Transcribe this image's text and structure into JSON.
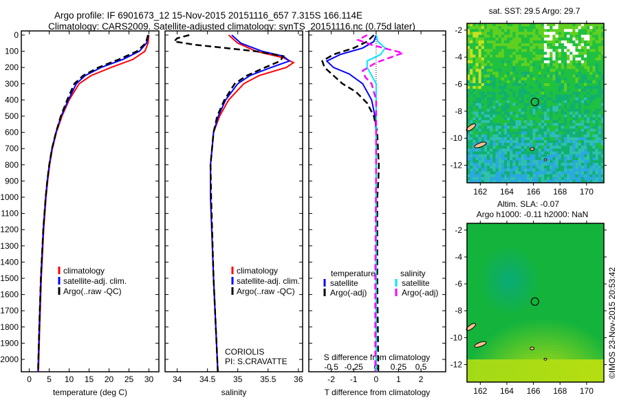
{
  "title_line1": "Argo profile: IF 6901673_12 15-Nov-2015 20151116_657 7.315S 166.114E",
  "title_line2": "Climatology: CARS2009. Satellite-adjusted climatology: synTS_20151116.nc (0.75d later)",
  "colors": {
    "climatology": "#ff0000",
    "satellite": "#0000ff",
    "argo": "#000000",
    "sal_satellite": "#00e5ff",
    "sal_argo": "#ff00ff"
  },
  "chart_data": [
    {
      "type": "line",
      "name": "temperature",
      "xlabel": "temperature (deg C)",
      "ylabel": "depth",
      "xlim": [
        -2,
        32.5
      ],
      "ylim": [
        2075,
        0
      ],
      "xticks": [
        0,
        5,
        10,
        15,
        20,
        25,
        30
      ],
      "yticks": [
        0,
        100,
        200,
        300,
        400,
        500,
        600,
        700,
        800,
        900,
        1000,
        1100,
        1200,
        1300,
        1400,
        1500,
        1600,
        1700,
        1800,
        1900,
        2000
      ],
      "legend": [
        "climatology",
        "satellite-adj. clim.",
        "Argo(..raw -QC)"
      ],
      "series": [
        {
          "name": "climatology",
          "color": "#ff0000",
          "dash": false,
          "depth": [
            0,
            50,
            100,
            150,
            200,
            250,
            300,
            400,
            500,
            600,
            700,
            800,
            900,
            1000,
            1200,
            1500,
            1800,
            2075
          ],
          "values": [
            30.0,
            29.8,
            29.0,
            26.0,
            20.5,
            15.5,
            12.5,
            10.0,
            8.2,
            6.8,
            5.8,
            5.1,
            4.6,
            4.2,
            3.6,
            3.0,
            2.6,
            2.3
          ]
        },
        {
          "name": "satellite-adj. clim.",
          "color": "#0000ff",
          "dash": false,
          "depth": [
            0,
            50,
            100,
            150,
            200,
            250,
            300,
            400,
            500,
            600,
            700,
            800,
            900,
            1000,
            1200,
            1500,
            1800,
            2075
          ],
          "values": [
            29.9,
            29.4,
            27.6,
            23.5,
            18.0,
            14.0,
            11.8,
            9.8,
            8.0,
            6.7,
            5.7,
            5.0,
            4.5,
            4.1,
            3.5,
            2.9,
            2.5,
            2.2
          ]
        },
        {
          "name": "Argo(..raw -QC)",
          "color": "#000000",
          "dash": true,
          "depth": [
            0,
            50,
            100,
            150,
            200,
            250,
            300,
            400,
            500,
            600,
            700,
            800,
            900,
            1000,
            1200,
            1500,
            1800,
            2075
          ],
          "values": [
            29.8,
            29.2,
            27.0,
            22.5,
            17.3,
            13.5,
            11.3,
            9.5,
            7.9,
            6.7,
            5.7,
            5.0,
            4.5,
            4.1,
            3.5,
            2.9,
            2.5,
            2.2
          ]
        }
      ]
    },
    {
      "type": "line",
      "name": "salinity",
      "xlabel": "salinity",
      "xlim": [
        33.8,
        36.07
      ],
      "ylim": [
        2075,
        0
      ],
      "xticks": [
        34,
        34.5,
        35,
        35.5,
        36
      ],
      "legend": [
        "climatology",
        "satellite-adj. clim.",
        "Argo(..raw -QC)"
      ],
      "annotation": [
        "CORIOLIS",
        "PI: S.CRAVATTE"
      ],
      "series": [
        {
          "name": "climatology",
          "color": "#ff0000",
          "dash": false,
          "depth": [
            0,
            50,
            100,
            140,
            170,
            200,
            250,
            300,
            400,
            500,
            600,
            800,
            1000,
            1500,
            2075
          ],
          "values": [
            34.85,
            35.0,
            35.3,
            35.75,
            35.92,
            35.8,
            35.35,
            35.1,
            34.85,
            34.7,
            34.6,
            34.55,
            34.55,
            34.6,
            34.67
          ]
        },
        {
          "name": "satellite-adj. clim.",
          "color": "#0000ff",
          "dash": false,
          "depth": [
            0,
            50,
            100,
            130,
            160,
            200,
            250,
            300,
            400,
            500,
            600,
            800,
            1000,
            1500,
            2075
          ],
          "values": [
            34.9,
            35.05,
            35.4,
            35.75,
            35.85,
            35.55,
            35.2,
            35.0,
            34.8,
            34.68,
            34.6,
            34.55,
            34.55,
            34.6,
            34.67
          ]
        },
        {
          "name": "Argo(..raw -QC)",
          "color": "#000000",
          "dash": true,
          "depth": [
            0,
            20,
            40,
            60,
            100,
            130,
            160,
            200,
            250,
            300,
            400,
            500,
            600,
            800,
            1000,
            1500,
            2075
          ],
          "values": [
            34.2,
            34.0,
            33.95,
            34.3,
            35.3,
            35.75,
            35.7,
            35.45,
            35.15,
            34.95,
            34.78,
            34.66,
            34.6,
            34.55,
            34.56,
            34.6,
            34.67
          ]
        }
      ]
    },
    {
      "type": "line",
      "name": "difference",
      "xlabel": "T difference from climatology",
      "xlabel_top": "S difference from climatology",
      "xlim": [
        -3,
        3.1
      ],
      "ylim": [
        2075,
        0
      ],
      "xticks": [
        -2,
        -1,
        0,
        1,
        2
      ],
      "sticks": [
        -0.5,
        -0.25,
        0,
        0.25,
        0.5
      ],
      "legend_temperature": {
        "heading": "temperature",
        "items": [
          "satellite",
          "Argo(-adj)"
        ]
      },
      "legend_salinity": {
        "heading": "salinity",
        "items": [
          "satellite",
          "Argo(-adj)"
        ]
      },
      "series": [
        {
          "name": "T satellite",
          "axis": "T",
          "color": "#0000ff",
          "dash": false,
          "depth": [
            0,
            40,
            80,
            120,
            160,
            200,
            240,
            300,
            400,
            500,
            600,
            800,
            1000,
            1500,
            2075
          ],
          "values": [
            0,
            -0.1,
            -0.6,
            -1.6,
            -2.2,
            -1.9,
            -1.2,
            -0.6,
            -0.2,
            -0.05,
            0,
            0,
            0,
            0,
            0
          ]
        },
        {
          "name": "T Argo(-adj)",
          "axis": "T",
          "color": "#000000",
          "dash": true,
          "depth": [
            0,
            40,
            80,
            120,
            160,
            200,
            250,
            300,
            350,
            420,
            500,
            600,
            700,
            800,
            900,
            1000,
            1500,
            2075
          ],
          "values": [
            -0.1,
            -0.4,
            -1.0,
            -1.9,
            -2.4,
            -2.3,
            -1.9,
            -1.5,
            -0.9,
            -0.4,
            -0.1,
            0.05,
            0.08,
            0.12,
            0.1,
            0.05,
            0.05,
            0.1
          ]
        },
        {
          "name": "S satellite",
          "axis": "S",
          "color": "#00e5ff",
          "dash": false,
          "depth": [
            0,
            40,
            80,
            120,
            160,
            200,
            250,
            300,
            400,
            500,
            800,
            1200,
            2075
          ],
          "values": [
            0,
            0.02,
            0.1,
            0.05,
            -0.1,
            -0.1,
            -0.05,
            0,
            0,
            0,
            0,
            0,
            0
          ]
        },
        {
          "name": "S Argo(-adj)",
          "axis": "S",
          "color": "#ff00ff",
          "dash": true,
          "depth": [
            0,
            30,
            60,
            90,
            110,
            130,
            170,
            220,
            260,
            300,
            400,
            500,
            800,
            1500,
            2075
          ],
          "values": [
            -0.1,
            -0.2,
            -0.05,
            0.15,
            0.3,
            0.2,
            0.0,
            -0.15,
            -0.12,
            -0.05,
            0,
            0,
            0,
            -0.01,
            -0.01
          ]
        }
      ]
    },
    {
      "type": "heatmap",
      "name": "sst-map",
      "title": "sat. SST: 29.5 Argo: 29.7",
      "xlim": [
        161,
        171.3
      ],
      "ylim": [
        -13.3,
        -1.5
      ],
      "xticks": [
        162,
        164,
        166,
        168,
        170
      ],
      "yticks": [
        -2,
        -4,
        -6,
        -8,
        -10,
        -12
      ],
      "profile_location": {
        "lon": 166.114,
        "lat": -7.315
      }
    },
    {
      "type": "heatmap",
      "name": "sla-map",
      "title_line1": "Altim. SLA: -0.07",
      "title_line2": "Argo h1000: -0.11 h2000: NaN",
      "xlim": [
        161,
        171.3
      ],
      "ylim": [
        -13.3,
        -1.5
      ],
      "xticks": [
        162,
        164,
        166,
        168,
        170
      ],
      "yticks": [
        -2,
        -4,
        -6,
        -8,
        -10,
        -12
      ],
      "profile_location": {
        "lon": 166.114,
        "lat": -7.315
      }
    }
  ],
  "credit": "©IMOS 23-Nov-2015 20:53:42"
}
